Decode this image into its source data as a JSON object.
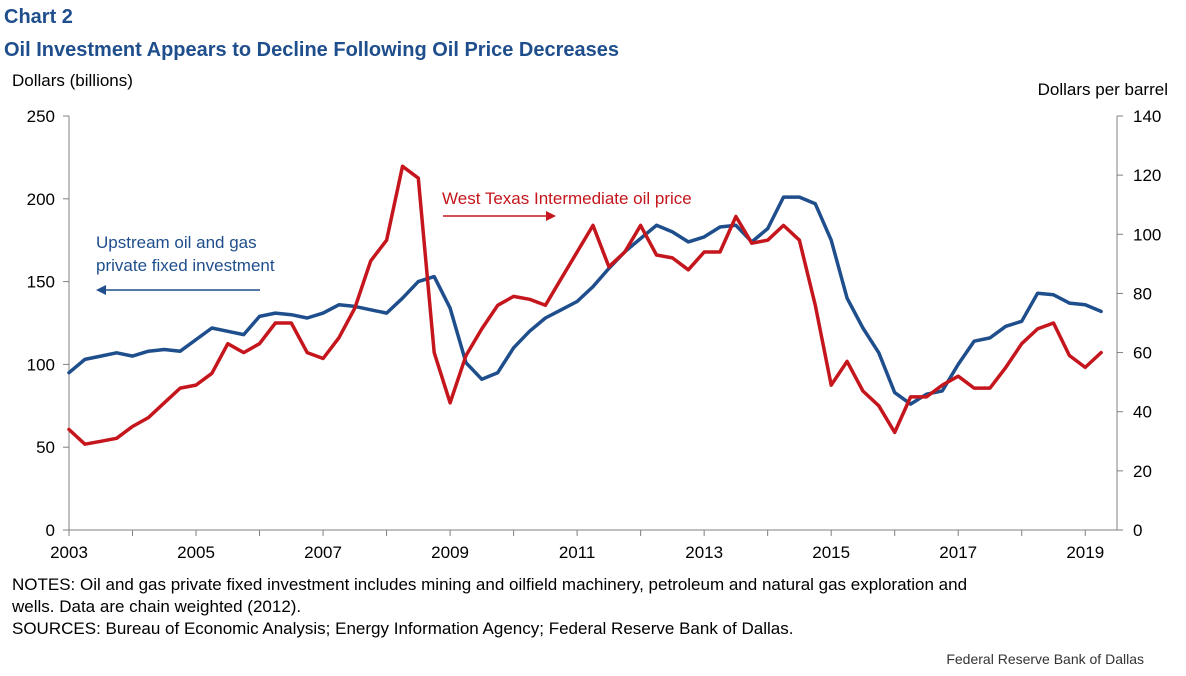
{
  "header": {
    "chart_label": "Chart 2",
    "title": "Oil Investment Appears to Decline Following Oil Price Decreases"
  },
  "colors": {
    "investment": "#1f4e8c",
    "oil_price": "#c4161c"
  },
  "chart_data": {
    "type": "line",
    "title": "Oil Investment Appears to Decline Following Oil Price Decreases",
    "left_axis": {
      "label": "Dollars (billions)",
      "range": [
        0,
        250
      ],
      "ticks": [
        0,
        50,
        100,
        150,
        200,
        250
      ]
    },
    "right_axis": {
      "label": "Dollars per barrel",
      "range": [
        0,
        140
      ],
      "ticks": [
        0,
        20,
        40,
        60,
        80,
        100,
        120,
        140
      ]
    },
    "x_axis": {
      "range": [
        2003,
        2019.5
      ],
      "tick_labels": [
        "2003",
        "2005",
        "2007",
        "2009",
        "2011",
        "2013",
        "2015",
        "2017",
        "2019"
      ]
    },
    "grid": false,
    "series": [
      {
        "name": "Upstream oil and gas private fixed investment",
        "axis": "left",
        "color": "#1f4e8c",
        "points": [
          [
            2003.0,
            95
          ],
          [
            2003.25,
            103
          ],
          [
            2003.5,
            105
          ],
          [
            2003.75,
            107
          ],
          [
            2004.0,
            105
          ],
          [
            2004.25,
            108
          ],
          [
            2004.5,
            109
          ],
          [
            2004.75,
            108
          ],
          [
            2005.0,
            115
          ],
          [
            2005.25,
            122
          ],
          [
            2005.5,
            120
          ],
          [
            2005.75,
            118
          ],
          [
            2006.0,
            129
          ],
          [
            2006.25,
            131
          ],
          [
            2006.5,
            130
          ],
          [
            2006.75,
            128
          ],
          [
            2007.0,
            131
          ],
          [
            2007.25,
            136
          ],
          [
            2007.5,
            135
          ],
          [
            2007.75,
            133
          ],
          [
            2008.0,
            131
          ],
          [
            2008.25,
            140
          ],
          [
            2008.5,
            150
          ],
          [
            2008.75,
            153
          ],
          [
            2009.0,
            134
          ],
          [
            2009.25,
            101
          ],
          [
            2009.5,
            91
          ],
          [
            2009.75,
            95
          ],
          [
            2010.0,
            110
          ],
          [
            2010.25,
            120
          ],
          [
            2010.5,
            128
          ],
          [
            2010.75,
            133
          ],
          [
            2011.0,
            138
          ],
          [
            2011.25,
            147
          ],
          [
            2011.5,
            158
          ],
          [
            2011.75,
            168
          ],
          [
            2012.0,
            176
          ],
          [
            2012.25,
            184
          ],
          [
            2012.5,
            180
          ],
          [
            2012.75,
            174
          ],
          [
            2013.0,
            177
          ],
          [
            2013.25,
            183
          ],
          [
            2013.5,
            184
          ],
          [
            2013.75,
            174
          ],
          [
            2014.0,
            182
          ],
          [
            2014.25,
            201
          ],
          [
            2014.5,
            201
          ],
          [
            2014.75,
            197
          ],
          [
            2015.0,
            175
          ],
          [
            2015.25,
            140
          ],
          [
            2015.5,
            122
          ],
          [
            2015.75,
            107
          ],
          [
            2016.0,
            83
          ],
          [
            2016.25,
            76
          ],
          [
            2016.5,
            82
          ],
          [
            2016.75,
            84
          ],
          [
            2017.0,
            100
          ],
          [
            2017.25,
            114
          ],
          [
            2017.5,
            116
          ],
          [
            2017.75,
            123
          ],
          [
            2018.0,
            126
          ],
          [
            2018.25,
            143
          ],
          [
            2018.5,
            142
          ],
          [
            2018.75,
            137
          ],
          [
            2019.0,
            136
          ],
          [
            2019.25,
            132
          ]
        ]
      },
      {
        "name": "West Texas Intermediate oil price",
        "axis": "right",
        "color": "#c4161c",
        "points": [
          [
            2003.0,
            34
          ],
          [
            2003.25,
            29
          ],
          [
            2003.5,
            30
          ],
          [
            2003.75,
            31
          ],
          [
            2004.0,
            35
          ],
          [
            2004.25,
            38
          ],
          [
            2004.5,
            43
          ],
          [
            2004.75,
            48
          ],
          [
            2005.0,
            49
          ],
          [
            2005.25,
            53
          ],
          [
            2005.5,
            63
          ],
          [
            2005.75,
            60
          ],
          [
            2006.0,
            63
          ],
          [
            2006.25,
            70
          ],
          [
            2006.5,
            70
          ],
          [
            2006.75,
            60
          ],
          [
            2007.0,
            58
          ],
          [
            2007.25,
            65
          ],
          [
            2007.5,
            75
          ],
          [
            2007.75,
            91
          ],
          [
            2008.0,
            98
          ],
          [
            2008.25,
            123
          ],
          [
            2008.5,
            119
          ],
          [
            2008.75,
            60
          ],
          [
            2009.0,
            43
          ],
          [
            2009.25,
            59
          ],
          [
            2009.5,
            68
          ],
          [
            2009.75,
            76
          ],
          [
            2010.0,
            79
          ],
          [
            2010.25,
            78
          ],
          [
            2010.5,
            76
          ],
          [
            2010.75,
            85
          ],
          [
            2011.0,
            94
          ],
          [
            2011.25,
            103
          ],
          [
            2011.5,
            89
          ],
          [
            2011.75,
            94
          ],
          [
            2012.0,
            103
          ],
          [
            2012.25,
            93
          ],
          [
            2012.5,
            92
          ],
          [
            2012.75,
            88
          ],
          [
            2013.0,
            94
          ],
          [
            2013.25,
            94
          ],
          [
            2013.5,
            106
          ],
          [
            2013.75,
            97
          ],
          [
            2014.0,
            98
          ],
          [
            2014.25,
            103
          ],
          [
            2014.5,
            98
          ],
          [
            2014.75,
            76
          ],
          [
            2015.0,
            49
          ],
          [
            2015.25,
            57
          ],
          [
            2015.5,
            47
          ],
          [
            2015.75,
            42
          ],
          [
            2016.0,
            33
          ],
          [
            2016.25,
            45
          ],
          [
            2016.5,
            45
          ],
          [
            2016.75,
            49
          ],
          [
            2017.0,
            52
          ],
          [
            2017.25,
            48
          ],
          [
            2017.5,
            48
          ],
          [
            2017.75,
            55
          ],
          [
            2018.0,
            63
          ],
          [
            2018.25,
            68
          ],
          [
            2018.5,
            70
          ],
          [
            2018.75,
            59
          ],
          [
            2019.0,
            55
          ],
          [
            2019.25,
            60
          ]
        ]
      }
    ],
    "annotations": [
      {
        "text_lines": [
          "Upstream oil and gas",
          "private fixed investment"
        ],
        "arrow": "left",
        "series": 0
      },
      {
        "text_lines": [
          "West Texas Intermediate oil price"
        ],
        "arrow": "right",
        "series": 1
      }
    ]
  },
  "notes": {
    "line1": "NOTES: Oil and gas private fixed investment includes mining and oilfield machinery, petroleum and natural gas exploration and",
    "line2": "wells. Data are chain weighted (2012).",
    "line3": "SOURCES: Bureau of Economic Analysis; Energy Information Agency; Federal Reserve Bank of Dallas."
  },
  "footer": {
    "credit": "Federal Reserve Bank of Dallas"
  }
}
